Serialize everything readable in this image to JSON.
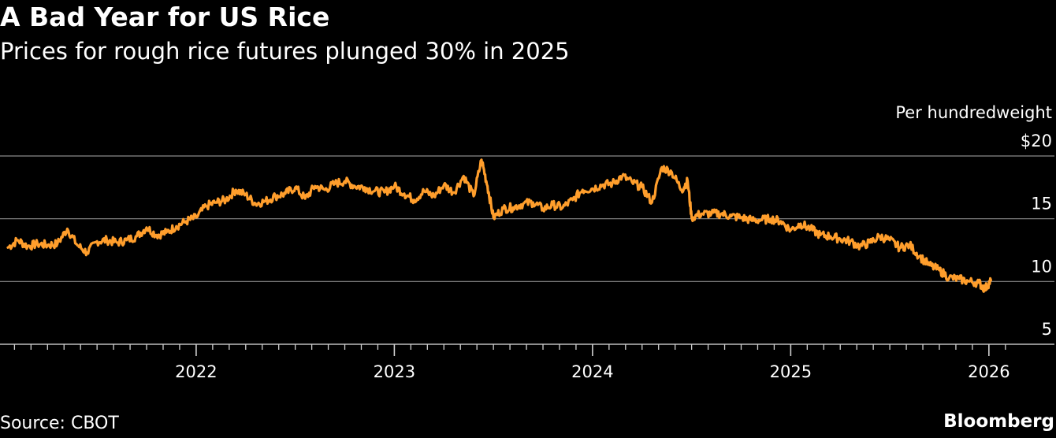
{
  "header": {
    "title": "A Bad Year for US Rice",
    "subtitle": "Prices for rough rice futures plunged 30% in 2025"
  },
  "footer": {
    "source": "Source: CBOT",
    "brand": "Bloomberg"
  },
  "colors": {
    "background": "#000000",
    "line": "#ff9e2c",
    "grid": "#8a8a8a",
    "text": "#ffffff"
  },
  "chart_data": {
    "type": "line",
    "title": "A Bad Year for US Rice",
    "subtitle": "Prices for rough rice futures plunged 30% in 2025",
    "unit_label": "Per hundredweight",
    "ylabel": "Per hundredweight",
    "xlabel": "",
    "ylim": [
      5,
      20
    ],
    "y_ticks": [
      {
        "value": 20,
        "label": "$20"
      },
      {
        "value": 15,
        "label": "15"
      },
      {
        "value": 10,
        "label": "10"
      },
      {
        "value": 5,
        "label": "5"
      }
    ],
    "xlim": [
      2021.05,
      2026.1
    ],
    "x_ticks": [
      {
        "value": 2022,
        "label": "2022"
      },
      {
        "value": 2023,
        "label": "2023"
      },
      {
        "value": 2024,
        "label": "2024"
      },
      {
        "value": 2025,
        "label": "2025"
      },
      {
        "value": 2026,
        "label": "2026"
      }
    ],
    "grid": true,
    "series": [
      {
        "name": "Rough rice futures",
        "x": [
          2021.05,
          2021.1,
          2021.15,
          2021.2,
          2021.25,
          2021.3,
          2021.35,
          2021.4,
          2021.45,
          2021.5,
          2021.55,
          2021.6,
          2021.65,
          2021.7,
          2021.75,
          2021.8,
          2021.85,
          2021.9,
          2021.95,
          2022.0,
          2022.05,
          2022.1,
          2022.15,
          2022.2,
          2022.25,
          2022.3,
          2022.35,
          2022.4,
          2022.45,
          2022.5,
          2022.55,
          2022.6,
          2022.65,
          2022.7,
          2022.75,
          2022.8,
          2022.85,
          2022.9,
          2022.95,
          2023.0,
          2023.05,
          2023.1,
          2023.15,
          2023.2,
          2023.25,
          2023.3,
          2023.35,
          2023.4,
          2023.44,
          2023.47,
          2023.5,
          2023.55,
          2023.6,
          2023.65,
          2023.7,
          2023.75,
          2023.8,
          2023.85,
          2023.9,
          2023.95,
          2024.0,
          2024.05,
          2024.1,
          2024.15,
          2024.2,
          2024.25,
          2024.3,
          2024.35,
          2024.4,
          2024.45,
          2024.48,
          2024.5,
          2024.55,
          2024.6,
          2024.65,
          2024.7,
          2024.75,
          2024.8,
          2024.85,
          2024.9,
          2024.95,
          2025.0,
          2025.05,
          2025.1,
          2025.15,
          2025.2,
          2025.25,
          2025.3,
          2025.35,
          2025.4,
          2025.45,
          2025.5,
          2025.55,
          2025.6,
          2025.65,
          2025.7,
          2025.75,
          2025.8,
          2025.85,
          2025.9,
          2025.95,
          2025.98,
          2026.01
        ],
        "values": [
          12.7,
          13.3,
          12.8,
          13.0,
          12.9,
          13.0,
          14.2,
          12.9,
          12.3,
          13.2,
          13.3,
          13.1,
          13.3,
          13.6,
          14.3,
          13.7,
          13.9,
          14.4,
          14.8,
          15.1,
          16.0,
          16.3,
          16.5,
          17.3,
          16.9,
          16.2,
          16.4,
          16.8,
          17.0,
          17.5,
          16.6,
          17.6,
          17.3,
          17.8,
          18.0,
          17.6,
          17.5,
          17.2,
          17.1,
          17.6,
          17.0,
          16.5,
          17.2,
          16.8,
          17.7,
          17.1,
          18.4,
          16.8,
          19.7,
          17.6,
          15.1,
          15.8,
          15.9,
          16.2,
          16.3,
          15.8,
          16.1,
          15.9,
          16.5,
          17.3,
          17.4,
          17.7,
          17.8,
          18.4,
          17.9,
          17.5,
          16.3,
          19.1,
          18.7,
          17.3,
          18.0,
          15.1,
          15.4,
          15.4,
          15.4,
          15.2,
          15.1,
          14.9,
          14.9,
          15.0,
          14.8,
          14.1,
          14.6,
          14.2,
          13.7,
          13.6,
          13.4,
          13.2,
          12.8,
          13.1,
          13.6,
          13.3,
          12.7,
          12.9,
          12.0,
          11.3,
          10.9,
          10.3,
          10.2,
          10.0,
          9.9,
          9.4,
          10.1
        ]
      }
    ]
  }
}
